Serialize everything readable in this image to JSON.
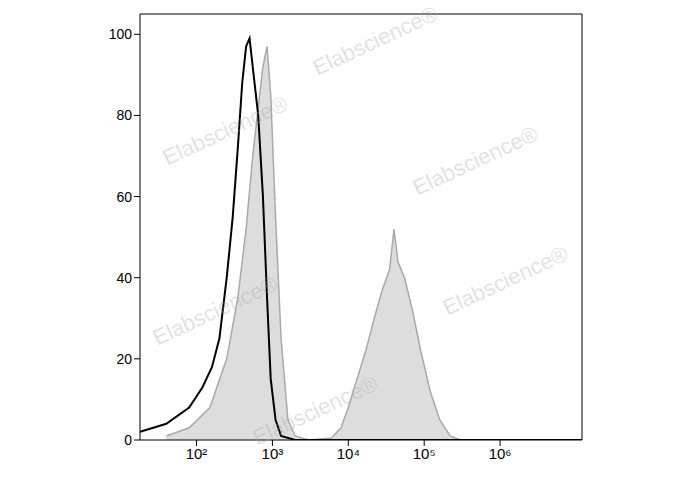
{
  "chart_data": {
    "type": "area",
    "log": "x",
    "grid": false,
    "tick_labels": true,
    "annotations": [
      "Elabscience®"
    ],
    "xlim": [
      18,
      12000000
    ],
    "xticks": [
      {
        "value": 100,
        "label": "10²"
      },
      {
        "value": 1000,
        "label": "10³"
      },
      {
        "value": 10000,
        "label": "10⁴"
      },
      {
        "value": 100000,
        "label": "10⁵"
      },
      {
        "value": 1000000,
        "label": "10⁶"
      }
    ],
    "ylim": [
      0,
      105
    ],
    "yticks": [
      0,
      20,
      40,
      60,
      80,
      100
    ],
    "series": [
      {
        "type": "area",
        "color": "#a9a9a9",
        "x": [
          40,
          80,
          150,
          250,
          350,
          450,
          550,
          650,
          750,
          850,
          950,
          1100,
          1300,
          1600,
          2000,
          3000,
          6000,
          8000,
          10000,
          13000,
          17000,
          22000,
          28000,
          35000,
          40000,
          45000,
          55000,
          70000,
          90000,
          120000,
          160000,
          220000,
          300000,
          12000000
        ],
        "values": [
          1,
          3,
          8,
          20,
          35,
          52,
          70,
          82,
          92,
          97,
          85,
          55,
          25,
          5,
          1,
          0,
          0.5,
          3,
          8,
          15,
          22,
          30,
          37,
          42,
          52,
          44,
          40,
          32,
          22,
          12,
          5,
          1,
          0,
          0
        ]
      },
      {
        "type": "line",
        "color": "#000000",
        "x": [
          18,
          40,
          80,
          120,
          160,
          200,
          250,
          300,
          350,
          400,
          450,
          500,
          550,
          650,
          750,
          850,
          950,
          1100,
          1300,
          2000,
          12000000
        ],
        "values": [
          2,
          4,
          8,
          13,
          18,
          25,
          40,
          55,
          72,
          88,
          97,
          99,
          92,
          80,
          60,
          35,
          15,
          5,
          1,
          0,
          0
        ]
      }
    ]
  }
}
